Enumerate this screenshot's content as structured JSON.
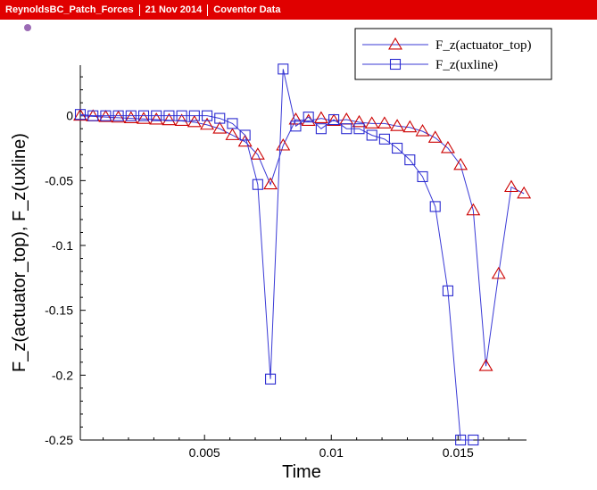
{
  "header": {
    "title": "ReynoldsBC_Patch_Forces",
    "date": "21 Nov 2014",
    "source": "Coventor Data"
  },
  "colors": {
    "header_bg": "#e00000",
    "line": "#3a3ad6",
    "triangle_marker": "#cc0000",
    "square_marker": "#2a2ad0",
    "dot": "#9b6bb5"
  },
  "chart_data": {
    "type": "line",
    "xlabel": "Time",
    "ylabel": "F_z(actuator_top), F_z(uxline)",
    "xlim": [
      0.0001,
      0.0177
    ],
    "ylim": [
      -0.25,
      0.039
    ],
    "xticks": [
      0.005,
      0.01,
      0.015
    ],
    "xtick_labels": [
      "0.005",
      "0.01",
      "0.015"
    ],
    "yticks": [
      0,
      -0.05,
      -0.1,
      -0.15,
      -0.2,
      -0.25
    ],
    "ytick_labels": [
      "0",
      "-0.05",
      "-0.1",
      "-0.15",
      "-0.2",
      "-0.25"
    ],
    "legend_position": "top-right",
    "series": [
      {
        "name": "F_z(actuator_top)",
        "marker": "triangle",
        "x": [
          0.0001,
          0.0006,
          0.0011,
          0.0016,
          0.0021,
          0.0026,
          0.0031,
          0.0036,
          0.0041,
          0.0046,
          0.0051,
          0.0056,
          0.0061,
          0.0066,
          0.0071,
          0.0076,
          0.0081,
          0.0086,
          0.0091,
          0.0096,
          0.0101,
          0.0106,
          0.0111,
          0.0116,
          0.0121,
          0.0126,
          0.0131,
          0.0136,
          0.0141,
          0.0146,
          0.0151,
          0.0156,
          0.0161,
          0.0166,
          0.0171,
          0.0176
        ],
        "y": [
          0.0,
          -0.0005,
          -0.001,
          -0.0015,
          -0.002,
          -0.0025,
          -0.003,
          -0.0035,
          -0.004,
          -0.005,
          -0.007,
          -0.01,
          -0.015,
          -0.02,
          -0.03,
          -0.053,
          -0.023,
          -0.003,
          -0.004,
          -0.002,
          -0.004,
          -0.003,
          -0.005,
          -0.006,
          -0.006,
          -0.008,
          -0.009,
          -0.012,
          -0.017,
          -0.025,
          -0.038,
          -0.073,
          -0.193,
          -0.122,
          -0.055,
          -0.06
        ]
      },
      {
        "name": "F_z(uxline)",
        "marker": "square",
        "x": [
          0.0001,
          0.0006,
          0.0011,
          0.0016,
          0.0021,
          0.0026,
          0.0031,
          0.0036,
          0.0041,
          0.0046,
          0.0051,
          0.0056,
          0.0061,
          0.0066,
          0.0071,
          0.0076,
          0.0081,
          0.0086,
          0.0091,
          0.0096,
          0.0101,
          0.0106,
          0.0111,
          0.0116,
          0.0121,
          0.0126,
          0.0131,
          0.0136,
          0.0141,
          0.0146,
          0.0151,
          0.0156
        ],
        "y": [
          0.001,
          0.0,
          0.0,
          0.0,
          0.0,
          0.0,
          0.0,
          0.0,
          0.0,
          0.0,
          0.0,
          -0.002,
          -0.006,
          -0.015,
          -0.053,
          -0.203,
          0.036,
          -0.008,
          -0.001,
          -0.01,
          -0.003,
          -0.01,
          -0.01,
          -0.015,
          -0.018,
          -0.025,
          -0.034,
          -0.047,
          -0.07,
          -0.135,
          -0.25,
          -0.25
        ]
      }
    ]
  }
}
